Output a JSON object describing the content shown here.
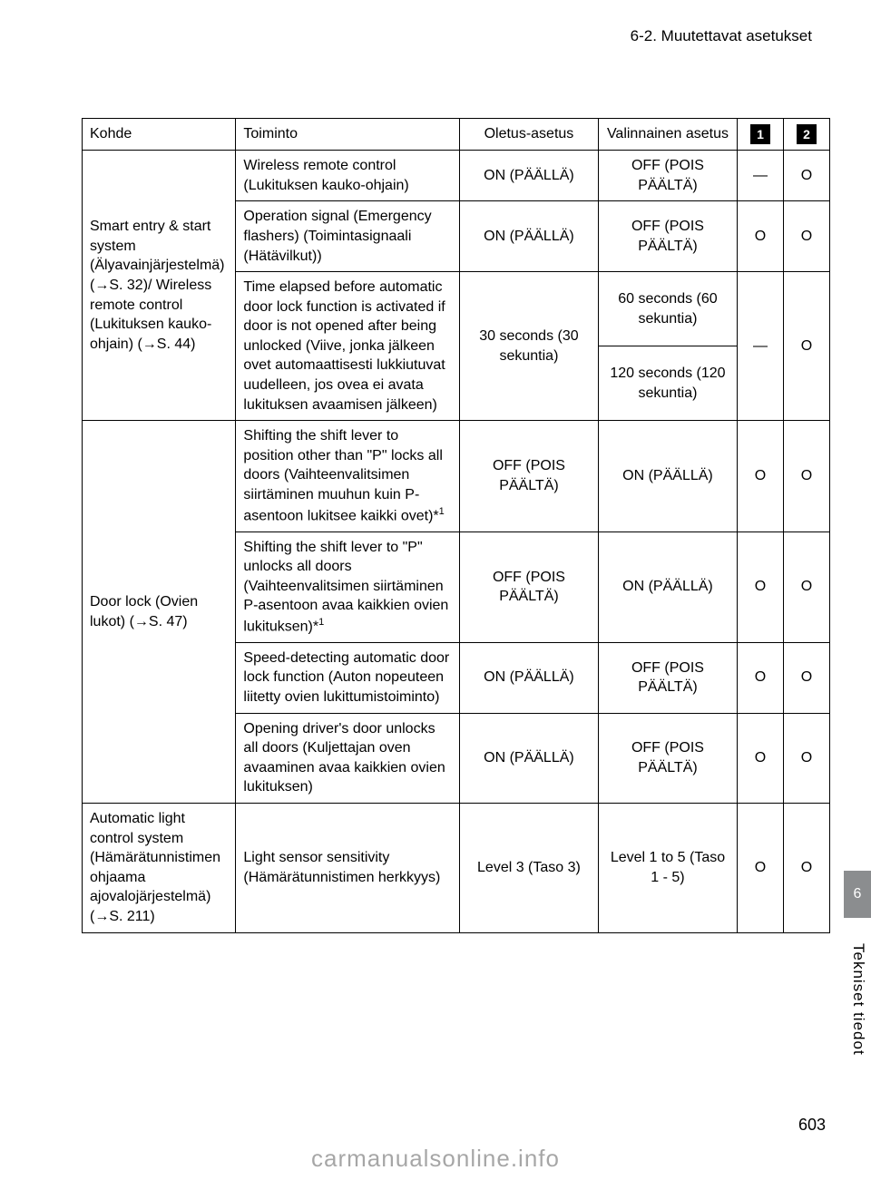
{
  "header": {
    "section": "6-2. Muutettavat asetukset"
  },
  "table": {
    "headers": {
      "kohde": "Kohde",
      "toiminto": "Toiminto",
      "oletus": "Oletus-asetus",
      "valinnainen": "Valinnainen asetus",
      "icon1": "1",
      "icon2": "2"
    },
    "rows": [
      {
        "kohde": "Smart entry & start system (Älyavainjärjestelmä) (→S. 32)/ Wireless remote control (Lukituksen kauko-ohjain) (→S. 44)",
        "kohde_rowspan": 3,
        "subrows": [
          {
            "toiminto": "Wireless remote control (Lukituksen kauko-ohjain)",
            "oletus": "ON (PÄÄLLÄ)",
            "valinnainen": "OFF (POIS PÄÄLTÄ)",
            "c1": "—",
            "c2": "O"
          },
          {
            "toiminto": "Operation signal (Emergency flashers) (Toimintasignaali (Hätävilkut))",
            "oletus": "ON (PÄÄLLÄ)",
            "valinnainen": "OFF (POIS PÄÄLTÄ)",
            "c1": "O",
            "c2": "O"
          },
          {
            "toiminto": "Time elapsed before automatic door lock function is activated if door is not opened after being unlocked (Viive, jonka jälkeen ovet automaattisesti lukkiutuvat uudelleen, jos ovea ei avata lukituksen avaamisen jälkeen)",
            "oletus": "30 seconds (30 sekuntia)",
            "valinnainen_a": "60 seconds (60 sekuntia)",
            "valinnainen_b": "120 seconds (120 sekuntia)",
            "c1": "—",
            "c2": "O"
          }
        ]
      },
      {
        "kohde": "Door lock (Ovien lukot) (→S. 47)",
        "kohde_rowspan": 4,
        "subrows": [
          {
            "toiminto": "Shifting the shift lever to position other than \"P\" locks all doors (Vaihteenvalitsimen siirtäminen muuhun kuin P-asentoon lukitsee kaikki ovet)*",
            "sup": "1",
            "oletus": "OFF (POIS PÄÄLTÄ)",
            "valinnainen": "ON (PÄÄLLÄ)",
            "c1": "O",
            "c2": "O"
          },
          {
            "toiminto": "Shifting the shift lever to \"P\" unlocks all doors (Vaihteenvalitsimen siirtäminen P-asentoon avaa kaikkien ovien lukituksen)*",
            "sup": "1",
            "oletus": "OFF (POIS PÄÄLTÄ)",
            "valinnainen": "ON (PÄÄLLÄ)",
            "c1": "O",
            "c2": "O"
          },
          {
            "toiminto": "Speed-detecting automatic door lock function (Auton nopeuteen liitetty ovien lukittumistoiminto)",
            "oletus": "ON (PÄÄLLÄ)",
            "valinnainen": "OFF (POIS PÄÄLTÄ)",
            "c1": "O",
            "c2": "O"
          },
          {
            "toiminto": "Opening driver's door unlocks all doors (Kuljettajan oven avaaminen avaa kaikkien ovien lukituksen)",
            "oletus": "ON (PÄÄLLÄ)",
            "valinnainen": "OFF (POIS PÄÄLTÄ)",
            "c1": "O",
            "c2": "O"
          }
        ]
      },
      {
        "kohde": "Automatic light control system (Hämärätunnistimen ohjaama ajovalojärjestelmä) (→S. 211)",
        "kohde_rowspan": 1,
        "subrows": [
          {
            "toiminto": "Light sensor sensitivity (Hämärätunnistimen herkkyys)",
            "oletus": "Level 3 (Taso 3)",
            "valinnainen": "Level 1 to 5 (Taso 1 - 5)",
            "c1": "O",
            "c2": "O"
          }
        ]
      }
    ]
  },
  "sidebar": {
    "chapter": "6",
    "label": "Tekniset tiedot"
  },
  "footer": {
    "page_number": "603",
    "watermark": "carmanualsonline.info"
  }
}
